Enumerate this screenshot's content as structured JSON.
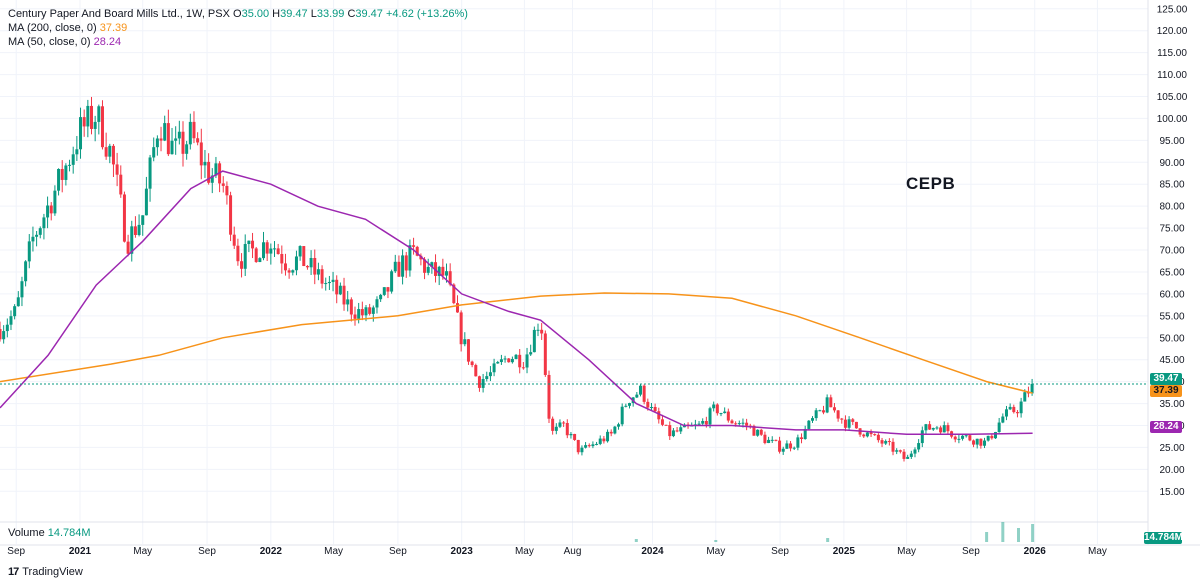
{
  "legend": {
    "title": "Century Paper And Board Mills Ltd., 1W, PSX",
    "o_label": "O",
    "o": "35.00",
    "h_label": "H",
    "h": "39.47",
    "l_label": "L",
    "l": "33.99",
    "c_label": "C",
    "c": "39.47",
    "change": "+4.62 (+13.26%)",
    "ma200_label": "MA (200, close, 0)",
    "ma200_value": "37.39",
    "ma50_label": "MA (50, close, 0)",
    "ma50_value": "28.24"
  },
  "volume": {
    "label": "Volume",
    "value": "14.784M"
  },
  "symbol": "CEPB",
  "tags": {
    "last": "39.47",
    "ma200": "37.39",
    "ma50": "28.24",
    "volume": "14.784M"
  },
  "brand": {
    "logo": "17",
    "name": "TradingView"
  },
  "colors": {
    "up": "#089981",
    "down": "#f23645",
    "ma200": "#f7931a",
    "ma50": "#9c27b0",
    "grid": "#f0f3fa"
  },
  "chart_data": {
    "type": "candlestick",
    "interval": "1W",
    "y_ticks": [
      15,
      20,
      25,
      30,
      35,
      40,
      45,
      50,
      55,
      60,
      65,
      70,
      75,
      80,
      85,
      90,
      95,
      100,
      105,
      110,
      115,
      120,
      125
    ],
    "y_tick_labels": [
      "15.00",
      "20.00",
      "25.00",
      "30.00",
      "35.00",
      "40.00",
      "45.00",
      "50.00",
      "55.00",
      "60.00",
      "65.00",
      "70.00",
      "75.00",
      "80.00",
      "85.00",
      "90.00",
      "95.00",
      "100.00",
      "105.00",
      "110.00",
      "115.00",
      "120.00",
      "125.00"
    ],
    "ylim": [
      8,
      127
    ],
    "x_ticks": [
      "Sep",
      "2021",
      "May",
      "Sep",
      "2022",
      "May",
      "Sep",
      "2023",
      "May",
      "Aug",
      "2024",
      "May",
      "Sep",
      "2025",
      "May",
      "Sep",
      "2026",
      "May"
    ],
    "x_tick_dates": [
      "2020-09-01",
      "2021-01-01",
      "2021-05-01",
      "2021-09-01",
      "2022-01-01",
      "2022-05-01",
      "2022-09-01",
      "2023-01-01",
      "2023-05-01",
      "2023-08-01",
      "2024-01-01",
      "2024-05-01",
      "2024-09-01",
      "2025-01-01",
      "2025-05-01",
      "2025-09-01",
      "2026-01-01",
      "2026-05-01"
    ],
    "close_path": [
      [
        "2020-08-01",
        52
      ],
      [
        "2020-09-01",
        56
      ],
      [
        "2020-10-01",
        72
      ],
      [
        "2020-11-01",
        80
      ],
      [
        "2020-12-01",
        88
      ],
      [
        "2021-01-01",
        97
      ],
      [
        "2021-02-01",
        101
      ],
      [
        "2021-03-01",
        92
      ],
      [
        "2021-04-01",
        72
      ],
      [
        "2021-05-01",
        78
      ],
      [
        "2021-06-01",
        100
      ],
      [
        "2021-07-01",
        92
      ],
      [
        "2021-08-01",
        96
      ],
      [
        "2021-09-01",
        88
      ],
      [
        "2021-10-01",
        85
      ],
      [
        "2021-11-01",
        68
      ],
      [
        "2021-12-01",
        70
      ],
      [
        "2022-01-01",
        72
      ],
      [
        "2022-02-01",
        67
      ],
      [
        "2022-03-01",
        68
      ],
      [
        "2022-04-01",
        64
      ],
      [
        "2022-05-01",
        61
      ],
      [
        "2022-06-01",
        57
      ],
      [
        "2022-07-01",
        55
      ],
      [
        "2022-08-01",
        58
      ],
      [
        "2022-09-01",
        66
      ],
      [
        "2022-10-01",
        69
      ],
      [
        "2022-11-01",
        65
      ],
      [
        "2022-12-01",
        64
      ],
      [
        "2023-01-01",
        50
      ],
      [
        "2023-02-01",
        40
      ],
      [
        "2023-03-01",
        42
      ],
      [
        "2023-04-01",
        46
      ],
      [
        "2023-05-01",
        45
      ],
      [
        "2023-06-01",
        55
      ],
      [
        "2023-06-20",
        28
      ],
      [
        "2023-07-15",
        30
      ],
      [
        "2023-08-15",
        24
      ],
      [
        "2023-09-15",
        26
      ],
      [
        "2023-10-15",
        28
      ],
      [
        "2023-11-15",
        36
      ],
      [
        "2023-12-10",
        38
      ],
      [
        "2024-01-01",
        33
      ],
      [
        "2024-02-01",
        28
      ],
      [
        "2024-03-01",
        29
      ],
      [
        "2024-04-01",
        30
      ],
      [
        "2024-05-01",
        34
      ],
      [
        "2024-06-01",
        31
      ],
      [
        "2024-07-01",
        30
      ],
      [
        "2024-08-01",
        27
      ],
      [
        "2024-09-01",
        25
      ],
      [
        "2024-10-01",
        26
      ],
      [
        "2024-11-01",
        31
      ],
      [
        "2024-12-01",
        35
      ],
      [
        "2025-01-01",
        31
      ],
      [
        "2025-02-01",
        29
      ],
      [
        "2025-03-01",
        27
      ],
      [
        "2025-04-01",
        25
      ],
      [
        "2025-05-01",
        22
      ],
      [
        "2025-06-01",
        29
      ],
      [
        "2025-07-01",
        30
      ],
      [
        "2025-08-01",
        28
      ],
      [
        "2025-09-01",
        27
      ],
      [
        "2025-10-01",
        26
      ],
      [
        "2025-11-01",
        32
      ],
      [
        "2025-12-01",
        34
      ],
      [
        "2025-12-28",
        39.47
      ]
    ],
    "ma200": [
      [
        "2020-08-01",
        40
      ],
      [
        "2021-03-01",
        44
      ],
      [
        "2021-06-01",
        46
      ],
      [
        "2021-10-01",
        50
      ],
      [
        "2022-03-01",
        53
      ],
      [
        "2022-09-01",
        55
      ],
      [
        "2023-01-01",
        57.5
      ],
      [
        "2023-06-01",
        59.5
      ],
      [
        "2023-10-01",
        60.2
      ],
      [
        "2024-02-01",
        60
      ],
      [
        "2024-06-01",
        59
      ],
      [
        "2024-10-01",
        55
      ],
      [
        "2025-02-01",
        50
      ],
      [
        "2025-06-01",
        45
      ],
      [
        "2025-10-01",
        40
      ],
      [
        "2025-12-28",
        37.39
      ]
    ],
    "ma50": [
      [
        "2020-08-01",
        34
      ],
      [
        "2020-11-01",
        46
      ],
      [
        "2021-02-01",
        62
      ],
      [
        "2021-05-01",
        72
      ],
      [
        "2021-08-01",
        84
      ],
      [
        "2021-10-01",
        88
      ],
      [
        "2022-01-01",
        85
      ],
      [
        "2022-04-01",
        80
      ],
      [
        "2022-07-01",
        77
      ],
      [
        "2022-10-01",
        70
      ],
      [
        "2023-01-01",
        60
      ],
      [
        "2023-04-01",
        56
      ],
      [
        "2023-06-01",
        54
      ],
      [
        "2023-09-01",
        45
      ],
      [
        "2023-12-01",
        35
      ],
      [
        "2024-03-01",
        30
      ],
      [
        "2024-06-01",
        30
      ],
      [
        "2024-10-01",
        29
      ],
      [
        "2025-01-01",
        29
      ],
      [
        "2025-05-01",
        28
      ],
      [
        "2025-09-01",
        28
      ],
      [
        "2025-12-28",
        28.24
      ]
    ],
    "last_price": 39.47,
    "volume_spikes": [
      [
        "2023-12-01",
        0.15
      ],
      [
        "2024-05-01",
        0.1
      ],
      [
        "2024-12-01",
        0.2
      ],
      [
        "2025-10-01",
        0.5
      ],
      [
        "2025-11-01",
        1.0
      ],
      [
        "2025-12-01",
        0.7
      ],
      [
        "2025-12-28",
        0.9
      ]
    ]
  }
}
